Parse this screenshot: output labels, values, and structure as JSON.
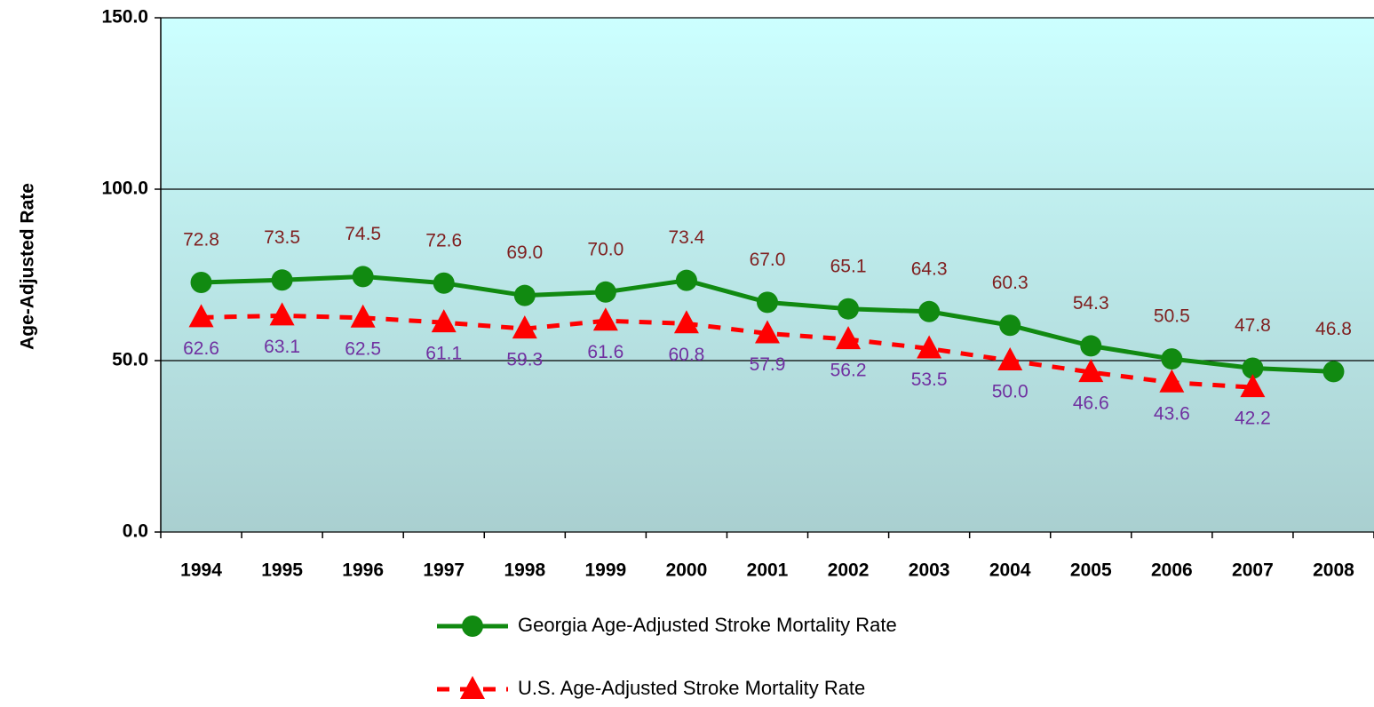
{
  "chart_data": {
    "type": "line",
    "y_label": "Age-Adjusted Rate",
    "categories": [
      "1994",
      "1995",
      "1996",
      "1997",
      "1998",
      "1999",
      "2000",
      "2001",
      "2002",
      "2003",
      "2004",
      "2005",
      "2006",
      "2007",
      "2008"
    ],
    "series": [
      {
        "name": "Georgia Age-Adjusted Stroke Mortality Rate",
        "color": "#118a11",
        "marker": "circle",
        "dash": false,
        "label_color": "#7f1f1f",
        "label_side": "above",
        "values": [
          72.8,
          73.5,
          74.5,
          72.6,
          69.0,
          70.0,
          73.4,
          67.0,
          65.1,
          64.3,
          60.3,
          54.3,
          50.5,
          47.8,
          46.8
        ],
        "value_labels": [
          "72.8",
          "73.5",
          "74.5",
          "72.6",
          "69.0",
          "70.0",
          "73.4",
          "67.0",
          "65.1",
          "64.3",
          "60.3",
          "54.3",
          "50.5",
          "47.8",
          "46.8"
        ]
      },
      {
        "name": "U.S. Age-Adjusted Stroke Mortality Rate",
        "color": "#ff0000",
        "marker": "triangle",
        "dash": true,
        "label_color": "#7030a0",
        "label_side": "below",
        "values": [
          62.6,
          63.1,
          62.5,
          61.1,
          59.3,
          61.6,
          60.8,
          57.9,
          56.2,
          53.5,
          50.0,
          46.6,
          43.6,
          42.2,
          null
        ],
        "value_labels": [
          "62.6",
          "63.1",
          "62.5",
          "61.1",
          "59.3",
          "61.6",
          "60.8",
          "57.9",
          "56.2",
          "53.5",
          "50.0",
          "46.6",
          "43.6",
          "42.2",
          null
        ]
      }
    ],
    "ylim": [
      0,
      150
    ],
    "yticks": [
      {
        "value": 0,
        "label": "0.0"
      },
      {
        "value": 50,
        "label": "50.0"
      },
      {
        "value": 100,
        "label": "100.0"
      },
      {
        "value": 150,
        "label": "150.0"
      }
    ],
    "grid": true,
    "legend": "bottom"
  }
}
